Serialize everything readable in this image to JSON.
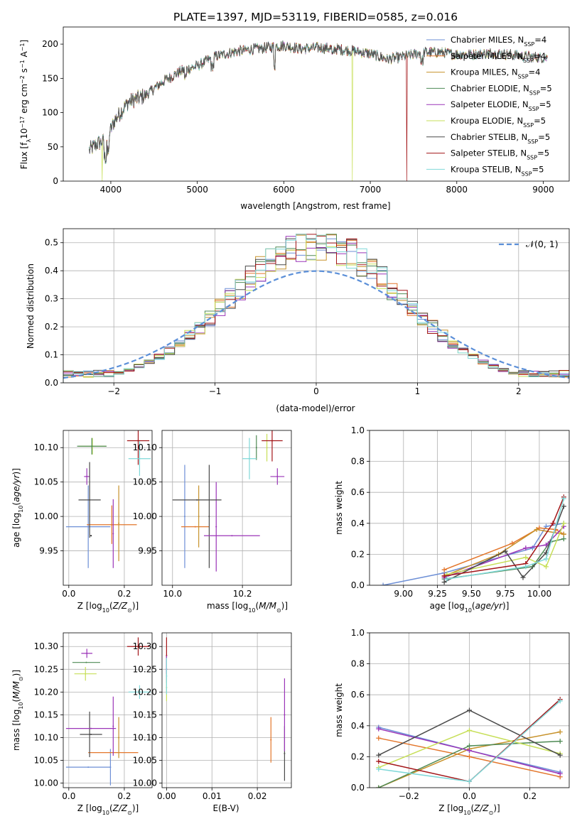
{
  "title": "PLATE=1397, MJD=53119, FIBERID=0585, z=0.016",
  "colors": [
    "#6d8fd6",
    "#e3762b",
    "#c7922b",
    "#4e8a54",
    "#9b35b8",
    "#c7df58",
    "#4a4a4a",
    "#a31619",
    "#7fd8d8"
  ],
  "models": [
    {
      "name": "Chabrier MILES",
      "nssp": "4"
    },
    {
      "name": "Salpeter MILES",
      "nssp": "4"
    },
    {
      "name": "Kroupa MILES",
      "nssp": "4"
    },
    {
      "name": "Chabrier ELODIE",
      "nssp": "5"
    },
    {
      "name": "Salpeter ELODIE",
      "nssp": "5"
    },
    {
      "name": "Kroupa ELODIE",
      "nssp": "5"
    },
    {
      "name": "Chabrier STELIB",
      "nssp": "5"
    },
    {
      "name": "Salpeter STELIB",
      "nssp": "5"
    },
    {
      "name": "Kroupa STELIB",
      "nssp": "5"
    }
  ],
  "normal_label": "𝒩(0, 1)",
  "chart_data": [
    {
      "type": "line",
      "name": "spectrum",
      "xlabel": "wavelength [Angstrom, rest frame]",
      "ylabel": "Flux [fλ10^-17 erg cm^-2 s^-1 A^-1]",
      "xlim": [
        3450,
        9300
      ],
      "ylim": [
        0,
        225
      ],
      "xticks": [
        4000,
        5000,
        6000,
        7000,
        8000,
        9000
      ],
      "yticks": [
        0,
        50,
        100,
        150,
        200
      ],
      "continuum": [
        [
          3750,
          45
        ],
        [
          3850,
          55
        ],
        [
          3950,
          60
        ],
        [
          4050,
          90
        ],
        [
          4200,
          115
        ],
        [
          4400,
          125
        ],
        [
          4600,
          145
        ],
        [
          4800,
          160
        ],
        [
          5000,
          168
        ],
        [
          5200,
          182
        ],
        [
          5400,
          188
        ],
        [
          5600,
          192
        ],
        [
          5800,
          195
        ],
        [
          6000,
          198
        ],
        [
          6200,
          193
        ],
        [
          6400,
          195
        ],
        [
          6600,
          193
        ],
        [
          6800,
          190
        ],
        [
          7000,
          186
        ],
        [
          7200,
          178
        ],
        [
          7400,
          182
        ],
        [
          7600,
          188
        ],
        [
          7800,
          188
        ],
        [
          8000,
          185
        ],
        [
          8200,
          185
        ],
        [
          8400,
          187
        ],
        [
          8600,
          185
        ],
        [
          8800,
          182
        ],
        [
          9000,
          180
        ],
        [
          9050,
          180
        ]
      ],
      "dropouts": [
        {
          "model": 5,
          "x": 3900
        },
        {
          "model": 5,
          "x": 6790
        },
        {
          "model": 7,
          "x": 7420
        }
      ],
      "grid": false,
      "legend": "top-right"
    },
    {
      "type": "histogram",
      "name": "residuals",
      "xlabel": "(data-model)/error",
      "ylabel": "Normed distribution",
      "xlim": [
        -2.5,
        2.5
      ],
      "ylim": [
        0,
        0.55
      ],
      "xticks": [
        -2,
        -1,
        0,
        1,
        2
      ],
      "yticks": [
        0.0,
        0.1,
        0.2,
        0.3,
        0.4,
        0.5
      ],
      "bin_width": 0.1,
      "grid": true,
      "legend": "top-right"
    },
    {
      "type": "errorbar",
      "name": "age-vs-Z",
      "xlabel": "Z [log10(Z/Z⊙)]",
      "ylabel": "age  [log10(age/yr)]",
      "xlim": [
        -0.02,
        0.3
      ],
      "ylim": [
        9.9,
        10.125
      ],
      "xticks": [
        0.0,
        0.2
      ],
      "yticks": [
        9.95,
        10.0,
        10.05,
        10.1
      ],
      "points": [
        {
          "x": 0.07,
          "xerr": 0.08,
          "y": 9.985,
          "yerr": 0.06
        },
        {
          "x": 0.155,
          "xerr": 0.09,
          "y": 9.988,
          "yerr": 0.028
        },
        {
          "x": 0.18,
          "xerr": 0.0,
          "y": 9.99,
          "yerr": 0.055
        },
        {
          "x": 0.085,
          "xerr": 0.05,
          "y": 10.102,
          "yerr": 0.012
        },
        {
          "x": 0.065,
          "xerr": 0.01,
          "y": 10.058,
          "yerr": 0.012
        },
        {
          "x": 0.083,
          "xerr": 0.053,
          "y": 10.102,
          "yerr": 0.012
        },
        {
          "x": 0.075,
          "xerr": 0.04,
          "y": 10.024,
          "yerr": 0.055
        },
        {
          "x": 0.25,
          "xerr": 0.04,
          "y": 10.11,
          "yerr": 0.035
        },
        {
          "x": 0.255,
          "xerr": 0.04,
          "y": 10.084,
          "yerr": 0.025
        },
        {
          "x": 0.08,
          "xerr": 0.09,
          "y": 9.972,
          "yerr": 0.0
        },
        {
          "x": 0.16,
          "xerr": 0.0,
          "y": 9.975,
          "yerr": 0.05
        }
      ],
      "grid": true
    },
    {
      "type": "errorbar",
      "name": "age-vs-mass",
      "xlabel": "mass [log10(M/M⊙)]",
      "ylabel": "",
      "xlim": [
        9.97,
        10.34
      ],
      "ylim": [
        9.9,
        10.125
      ],
      "xticks": [
        10.0,
        10.2
      ],
      "yticks": [
        9.95,
        10.0,
        10.05,
        10.1
      ],
      "points": [
        {
          "x": 10.035,
          "xerr": 0.0,
          "y": 10.0,
          "yerr": 0.075
        },
        {
          "x": 10.065,
          "xerr": 0.04,
          "y": 9.985,
          "yerr": 0.0
        },
        {
          "x": 10.075,
          "xerr": 0.0,
          "y": 10.0,
          "yerr": 0.045
        },
        {
          "x": 10.105,
          "xerr": 0.0,
          "y": 10.0,
          "yerr": 0.075
        },
        {
          "x": 10.125,
          "xerr": 0.0,
          "y": 9.985,
          "yerr": 0.065
        },
        {
          "x": 10.07,
          "xerr": 0.07,
          "y": 10.024,
          "yerr": 0.0
        },
        {
          "x": 10.17,
          "xerr": 0.08,
          "y": 9.972,
          "yerr": 0.0
        },
        {
          "x": 10.24,
          "xerr": 0.0,
          "y": 10.1,
          "yerr": 0.018
        },
        {
          "x": 10.27,
          "xerr": 0.0,
          "y": 10.1,
          "yerr": 0.02
        },
        {
          "x": 10.285,
          "xerr": 0.03,
          "y": 10.11,
          "yerr": 0.03
        },
        {
          "x": 10.3,
          "xerr": 0.02,
          "y": 10.058,
          "yerr": 0.012
        },
        {
          "x": 10.22,
          "xerr": 0.02,
          "y": 10.084,
          "yerr": 0.03
        }
      ],
      "grid": true
    },
    {
      "type": "line",
      "name": "mass-weight-vs-age",
      "xlabel": "age  [log10(age/yr)]",
      "ylabel": "mass weight",
      "xlim": [
        8.75,
        10.22
      ],
      "ylim": [
        0,
        1.0
      ],
      "xticks": [
        9.0,
        9.25,
        9.5,
        9.75,
        10.0
      ],
      "yticks": [
        0.0,
        0.2,
        0.4,
        0.6,
        0.8,
        1.0
      ],
      "series": [
        {
          "x": [
            8.85,
            9.3,
            9.95,
            10.05,
            10.18
          ],
          "y": [
            0.0,
            0.08,
            0.24,
            0.38,
            0.4
          ]
        },
        {
          "x": [
            9.3,
            9.8,
            10.0,
            10.12,
            10.18
          ],
          "y": [
            0.1,
            0.27,
            0.37,
            0.36,
            0.33
          ]
        },
        {
          "x": [
            9.3,
            9.7,
            9.98,
            10.18
          ],
          "y": [
            0.06,
            0.2,
            0.36,
            0.33
          ]
        },
        {
          "x": [
            9.3,
            9.95,
            10.08,
            10.18
          ],
          "y": [
            0.04,
            0.12,
            0.28,
            0.3
          ]
        },
        {
          "x": [
            9.3,
            9.9,
            10.05,
            10.18
          ],
          "y": [
            0.05,
            0.24,
            0.26,
            0.38
          ]
        },
        {
          "x": [
            9.32,
            9.9,
            10.05,
            10.18
          ],
          "y": [
            0.07,
            0.18,
            0.12,
            0.4
          ]
        },
        {
          "x": [
            9.3,
            9.75,
            9.88,
            10.05,
            10.18
          ],
          "y": [
            0.02,
            0.22,
            0.05,
            0.21,
            0.51
          ]
        },
        {
          "x": [
            9.3,
            9.9,
            10.1,
            10.18
          ],
          "y": [
            0.06,
            0.14,
            0.4,
            0.57
          ]
        },
        {
          "x": [
            9.32,
            9.9,
            10.05,
            10.18
          ],
          "y": [
            0.04,
            0.12,
            0.17,
            0.56
          ]
        }
      ],
      "grid": true
    },
    {
      "type": "errorbar",
      "name": "mass-vs-Z",
      "xlabel": "Z [log10(Z/Z⊙)]",
      "ylabel": "mass [log10(M/M⊙)]",
      "xlim": [
        -0.02,
        0.3
      ],
      "ylim": [
        9.99,
        10.33
      ],
      "xticks": [
        0.0,
        0.2
      ],
      "yticks": [
        10.0,
        10.05,
        10.1,
        10.15,
        10.2,
        10.25,
        10.3
      ],
      "points": [
        {
          "x": 0.07,
          "xerr": 0.08,
          "y": 10.035,
          "yerr": 0.0
        },
        {
          "x": 0.15,
          "xerr": 0.0,
          "y": 10.035,
          "yerr": 0.04
        },
        {
          "x": 0.16,
          "xerr": 0.09,
          "y": 10.067,
          "yerr": 0.0
        },
        {
          "x": 0.18,
          "xerr": 0.0,
          "y": 10.1,
          "yerr": 0.045
        },
        {
          "x": 0.08,
          "xerr": 0.04,
          "y": 10.107,
          "yerr": 0.0
        },
        {
          "x": 0.075,
          "xerr": 0.0,
          "y": 10.107,
          "yerr": 0.05
        },
        {
          "x": 0.08,
          "xerr": 0.09,
          "y": 10.12,
          "yerr": 0.0
        },
        {
          "x": 0.16,
          "xerr": 0.0,
          "y": 10.125,
          "yerr": 0.065
        },
        {
          "x": 0.065,
          "xerr": 0.02,
          "y": 10.285,
          "yerr": 0.01
        },
        {
          "x": 0.063,
          "xerr": 0.05,
          "y": 10.265,
          "yerr": 0.0
        },
        {
          "x": 0.06,
          "xerr": 0.04,
          "y": 10.24,
          "yerr": 0.015
        },
        {
          "x": 0.25,
          "xerr": 0.04,
          "y": 10.3,
          "yerr": 0.02
        },
        {
          "x": 0.255,
          "xerr": 0.04,
          "y": 10.2,
          "yerr": 0.015
        }
      ],
      "grid": true
    },
    {
      "type": "errorbar",
      "name": "mass-vs-ebv",
      "xlabel": "E(B-V)",
      "ylabel": "",
      "xlim": [
        -0.001,
        0.0275
      ],
      "ylim": [
        9.99,
        10.33
      ],
      "xticks": [
        0.0,
        0.01,
        0.02
      ],
      "yticks": [
        10.0,
        10.05,
        10.1,
        10.15,
        10.2,
        10.25,
        10.3
      ],
      "points": [
        {
          "x": 0.0,
          "y": 10.28,
          "yerr": 0.04
        },
        {
          "x": 0.0,
          "y": 10.25,
          "yerr": 0.03
        },
        {
          "x": 0.0,
          "y": 10.21,
          "yerr": 0.03
        },
        {
          "x": 0.0,
          "y": 10.235,
          "yerr": 0.04
        },
        {
          "x": 0.023,
          "y": 10.095,
          "yerr": 0.05
        },
        {
          "x": 0.026,
          "y": 10.065,
          "yerr": 0.06
        },
        {
          "x": 0.026,
          "y": 10.15,
          "yerr": 0.08
        }
      ],
      "grid": true
    },
    {
      "type": "line",
      "name": "mass-weight-vs-Z",
      "xlabel": "Z [log10(Z/Z⊙)]",
      "ylabel": "mass weight",
      "xlim": [
        -0.33,
        0.33
      ],
      "ylim": [
        0,
        1.0
      ],
      "xticks": [
        -0.2,
        0.0,
        0.2
      ],
      "yticks": [
        0.0,
        0.2,
        0.4,
        0.6,
        0.8,
        1.0
      ],
      "series": [
        {
          "x": [
            -0.3,
            0.0,
            0.3
          ],
          "y": [
            0.39,
            0.24,
            0.1
          ]
        },
        {
          "x": [
            -0.3,
            0.0,
            0.3
          ],
          "y": [
            0.32,
            0.2,
            0.07
          ]
        },
        {
          "x": [
            -0.3,
            0.0,
            0.3
          ],
          "y": [
            0.0,
            0.25,
            0.36
          ]
        },
        {
          "x": [
            -0.3,
            0.0,
            0.3
          ],
          "y": [
            0.0,
            0.27,
            0.3
          ]
        },
        {
          "x": [
            -0.3,
            0.0,
            0.3
          ],
          "y": [
            0.38,
            0.24,
            0.09
          ]
        },
        {
          "x": [
            -0.3,
            0.0,
            0.3
          ],
          "y": [
            0.13,
            0.37,
            0.22
          ]
        },
        {
          "x": [
            -0.3,
            0.0,
            0.3
          ],
          "y": [
            0.21,
            0.5,
            0.21
          ]
        },
        {
          "x": [
            -0.3,
            0.0,
            0.3
          ],
          "y": [
            0.17,
            0.04,
            0.57
          ]
        },
        {
          "x": [
            -0.3,
            0.0,
            0.3
          ],
          "y": [
            0.12,
            0.04,
            0.56
          ]
        }
      ],
      "grid": true
    }
  ]
}
